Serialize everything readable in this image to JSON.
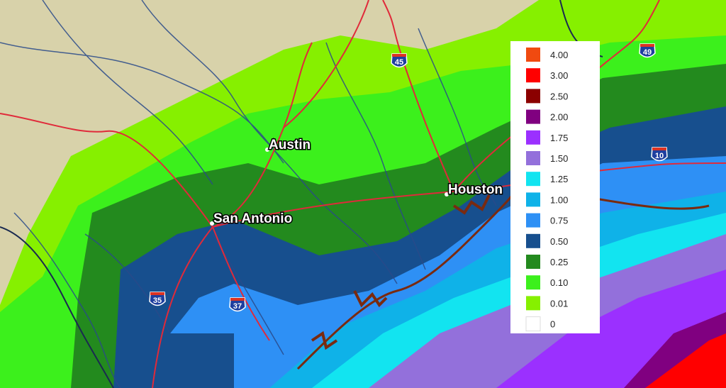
{
  "cities": [
    "Austin",
    "San Antonio",
    "Houston"
  ],
  "highway_shields": [
    "45",
    "49",
    "10",
    "35",
    "37"
  ],
  "legend": {
    "entries": [
      {
        "label": "4.00",
        "color": "#f04a10"
      },
      {
        "label": "3.00",
        "color": "#ff0000"
      },
      {
        "label": "2.50",
        "color": "#8b0000"
      },
      {
        "label": "2.00",
        "color": "#800080"
      },
      {
        "label": "1.75",
        "color": "#9b30ff"
      },
      {
        "label": "1.50",
        "color": "#9370db"
      },
      {
        "label": "1.25",
        "color": "#12e4f0"
      },
      {
        "label": "1.00",
        "color": "#0fb2e8"
      },
      {
        "label": "0.75",
        "color": "#2e90f5"
      },
      {
        "label": "0.50",
        "color": "#174f8e"
      },
      {
        "label": "0.25",
        "color": "#238a1e"
      },
      {
        "label": "0.10",
        "color": "#3cf01c"
      },
      {
        "label": "0.01",
        "color": "#86f000"
      },
      {
        "label": "0",
        "color": "#ffffff"
      }
    ]
  }
}
